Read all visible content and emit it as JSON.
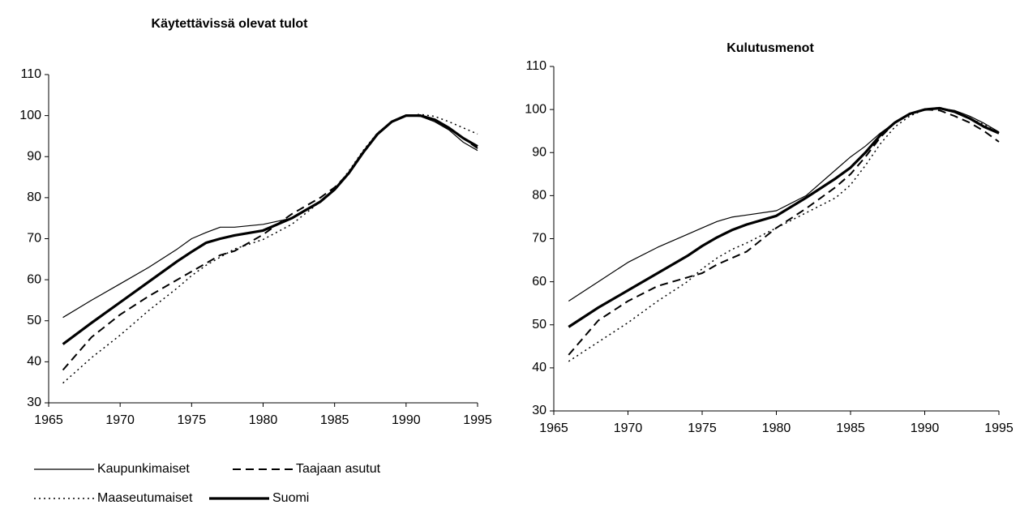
{
  "chart_data": [
    {
      "type": "line",
      "title": "Käytettävissä olevat tulot",
      "x": [
        1966,
        1968,
        1970,
        1972,
        1974,
        1975,
        1976,
        1977,
        1978,
        1980,
        1982,
        1984,
        1985,
        1986,
        1987,
        1988,
        1989,
        1990,
        1991,
        1992,
        1993,
        1994,
        1995
      ],
      "xlim": [
        1965,
        1995
      ],
      "xticks": [
        1965,
        1970,
        1975,
        1980,
        1985,
        1990,
        1995
      ],
      "ylim": [
        30,
        110
      ],
      "yticks": [
        30,
        40,
        50,
        60,
        70,
        80,
        90,
        100,
        110
      ],
      "grid": false,
      "legend": "bottom",
      "series": [
        {
          "name": "Kaupunkimaiset",
          "color": "#000000",
          "style": "thin",
          "values": [
            50.8,
            55,
            59,
            63,
            67.5,
            70,
            71.5,
            72.8,
            72.8,
            73.5,
            75,
            79,
            82,
            86,
            91,
            95.5,
            98.5,
            100,
            99.8,
            98.5,
            96.5,
            93.5,
            91.5
          ]
        },
        {
          "name": "Taajaan asutut",
          "color": "#000000",
          "style": "dashed",
          "values": [
            38,
            46,
            51.5,
            56,
            60,
            62,
            64,
            66,
            67,
            71,
            76,
            80,
            82.5,
            86,
            91,
            95.5,
            98.5,
            100,
            100,
            99,
            97,
            94.5,
            92
          ]
        },
        {
          "name": "Maaseutumaiset",
          "color": "#000000",
          "style": "dotted",
          "values": [
            34.8,
            41,
            46.5,
            52.5,
            58,
            61,
            63.5,
            65.5,
            67.5,
            69.8,
            73.5,
            79,
            82,
            86.5,
            91.5,
            95.8,
            98.5,
            100,
            100.3,
            99.8,
            98.5,
            97,
            95.5
          ]
        },
        {
          "name": "Suomi",
          "color": "#000000",
          "style": "thick",
          "values": [
            44.3,
            49.5,
            54.5,
            59.5,
            64.5,
            66.8,
            69,
            70,
            70.8,
            72,
            75,
            79,
            82,
            86,
            91,
            95.5,
            98.5,
            100,
            100,
            99,
            97,
            94.5,
            92.5
          ]
        }
      ]
    },
    {
      "type": "line",
      "title": "Kulutusmenot",
      "x": [
        1966,
        1968,
        1970,
        1972,
        1974,
        1975,
        1976,
        1977,
        1978,
        1980,
        1982,
        1984,
        1985,
        1986,
        1987,
        1988,
        1989,
        1990,
        1991,
        1992,
        1993,
        1994,
        1995
      ],
      "xlim": [
        1965,
        1995
      ],
      "xticks": [
        1965,
        1970,
        1975,
        1980,
        1985,
        1990,
        1995
      ],
      "ylim": [
        30,
        110
      ],
      "yticks": [
        30,
        40,
        50,
        60,
        70,
        80,
        90,
        100,
        110
      ],
      "grid": false,
      "series": [
        {
          "name": "Kaupunkimaiset",
          "color": "#000000",
          "style": "thin",
          "values": [
            55.5,
            60,
            64.5,
            68,
            71,
            72.5,
            74,
            75,
            75.5,
            76.5,
            80,
            86,
            89,
            91.5,
            94.5,
            97,
            99,
            100,
            100.3,
            99.8,
            98.5,
            96.8,
            94.8
          ]
        },
        {
          "name": "Taajaan asutut",
          "color": "#000000",
          "style": "dashed",
          "values": [
            43,
            51,
            55.5,
            59,
            61,
            62,
            64,
            65.5,
            67,
            72.5,
            77,
            82,
            85,
            89,
            93.5,
            97,
            99,
            100,
            99.8,
            98.5,
            97,
            95,
            92.5
          ]
        },
        {
          "name": "Maaseutumaiset",
          "color": "#000000",
          "style": "dotted",
          "values": [
            41.5,
            46,
            50.5,
            55.5,
            60,
            63,
            65.5,
            67.5,
            69,
            72.5,
            76,
            79.5,
            82.5,
            87,
            92,
            96,
            98.5,
            100,
            100.5,
            99.5,
            98,
            96.5,
            94.5
          ]
        },
        {
          "name": "Suomi",
          "color": "#000000",
          "style": "thick",
          "values": [
            49.5,
            54,
            58,
            62,
            66,
            68.3,
            70.3,
            72,
            73.3,
            75.3,
            79.5,
            84,
            86.5,
            90,
            94,
            97,
            99,
            100,
            100.3,
            99.5,
            98,
            96,
            94.5
          ]
        }
      ]
    }
  ]
}
